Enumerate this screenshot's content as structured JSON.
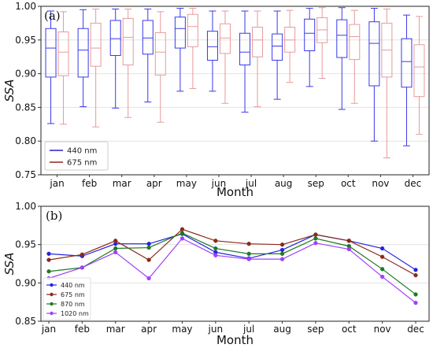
{
  "chart_data": [
    {
      "type": "box",
      "panel_tag": "(a)",
      "xlabel": "Month",
      "ylabel": "SSA",
      "ylim": [
        0.75,
        1.0
      ],
      "yticks": [
        "0.75",
        "0.80",
        "0.85",
        "0.90",
        "0.95",
        "1.00"
      ],
      "categories": [
        "jan",
        "feb",
        "mar",
        "apr",
        "may",
        "jun",
        "jul",
        "aug",
        "sep",
        "oct",
        "nov",
        "dec"
      ],
      "grid": "horizontal",
      "legend_position": "bottom-left",
      "series": [
        {
          "name": "440 nm",
          "color": "#3a3ae8",
          "boxes": [
            {
              "whislo": 0.826,
              "q1": 0.895,
              "med": 0.938,
              "q3": 0.967,
              "whishi": 0.993
            },
            {
              "whislo": 0.851,
              "q1": 0.895,
              "med": 0.935,
              "q3": 0.967,
              "whishi": 0.995
            },
            {
              "whislo": 0.849,
              "q1": 0.927,
              "med": 0.952,
              "q3": 0.979,
              "whishi": 0.996
            },
            {
              "whislo": 0.858,
              "q1": 0.929,
              "med": 0.953,
              "q3": 0.979,
              "whishi": 0.996
            },
            {
              "whislo": 0.874,
              "q1": 0.938,
              "med": 0.967,
              "q3": 0.984,
              "whishi": 0.997
            },
            {
              "whislo": 0.874,
              "q1": 0.92,
              "med": 0.94,
              "q3": 0.963,
              "whishi": 0.993
            },
            {
              "whislo": 0.843,
              "q1": 0.913,
              "med": 0.932,
              "q3": 0.96,
              "whishi": 0.993
            },
            {
              "whislo": 0.862,
              "q1": 0.92,
              "med": 0.941,
              "q3": 0.959,
              "whishi": 0.993
            },
            {
              "whislo": 0.881,
              "q1": 0.934,
              "med": 0.96,
              "q3": 0.981,
              "whishi": 0.997
            },
            {
              "whislo": 0.847,
              "q1": 0.924,
              "med": 0.957,
              "q3": 0.98,
              "whishi": 0.998
            },
            {
              "whislo": 0.8,
              "q1": 0.882,
              "med": 0.945,
              "q3": 0.977,
              "whishi": 0.997
            },
            {
              "whislo": 0.793,
              "q1": 0.88,
              "med": 0.918,
              "q3": 0.952,
              "whishi": 0.987
            }
          ]
        },
        {
          "name": "675 nm",
          "color": "#e89a9a",
          "boxes": [
            {
              "whislo": 0.825,
              "q1": 0.897,
              "med": 0.932,
              "q3": 0.962,
              "whishi": 0.992
            },
            {
              "whislo": 0.821,
              "q1": 0.911,
              "med": 0.938,
              "q3": 0.975,
              "whishi": 0.996
            },
            {
              "whislo": 0.835,
              "q1": 0.913,
              "med": 0.954,
              "q3": 0.982,
              "whishi": 0.996
            },
            {
              "whislo": 0.828,
              "q1": 0.898,
              "med": 0.932,
              "q3": 0.961,
              "whishi": 0.992
            },
            {
              "whislo": 0.878,
              "q1": 0.94,
              "med": 0.97,
              "q3": 0.988,
              "whishi": 0.997
            },
            {
              "whislo": 0.856,
              "q1": 0.93,
              "med": 0.953,
              "q3": 0.974,
              "whishi": 0.993
            },
            {
              "whislo": 0.851,
              "q1": 0.925,
              "med": 0.95,
              "q3": 0.969,
              "whishi": 0.993
            },
            {
              "whislo": 0.887,
              "q1": 0.932,
              "med": 0.95,
              "q3": 0.969,
              "whishi": 0.994
            },
            {
              "whislo": 0.893,
              "q1": 0.946,
              "med": 0.965,
              "q3": 0.983,
              "whishi": 0.998
            },
            {
              "whislo": 0.856,
              "q1": 0.921,
              "med": 0.955,
              "q3": 0.973,
              "whishi": 0.994
            },
            {
              "whislo": 0.775,
              "q1": 0.895,
              "med": 0.935,
              "q3": 0.975,
              "whishi": 0.996
            },
            {
              "whislo": 0.81,
              "q1": 0.866,
              "med": 0.91,
              "q3": 0.943,
              "whishi": 0.985
            }
          ]
        }
      ]
    },
    {
      "type": "line",
      "panel_tag": "(b)",
      "xlabel": "Month",
      "ylabel": "SSA",
      "ylim": [
        0.85,
        1.0
      ],
      "yticks": [
        "0.85",
        "0.90",
        "0.95",
        "1.00"
      ],
      "categories": [
        "jan",
        "feb",
        "mar",
        "apr",
        "may",
        "jun",
        "jul",
        "aug",
        "sep",
        "oct",
        "nov",
        "dec"
      ],
      "grid": "horizontal",
      "legend_position": "bottom-left",
      "series": [
        {
          "name": "440 nm",
          "color": "#2424e0",
          "values": [
            0.938,
            0.935,
            0.951,
            0.951,
            0.964,
            0.94,
            0.932,
            0.943,
            0.963,
            0.955,
            0.945,
            0.917
          ]
        },
        {
          "name": "675 nm",
          "color": "#8a2a1a",
          "values": [
            0.93,
            0.937,
            0.955,
            0.93,
            0.97,
            0.955,
            0.951,
            0.95,
            0.963,
            0.955,
            0.934,
            0.91
          ]
        },
        {
          "name": "870 nm",
          "color": "#1f7a1f",
          "values": [
            0.915,
            0.92,
            0.945,
            0.946,
            0.965,
            0.945,
            0.938,
            0.938,
            0.958,
            0.948,
            0.918,
            0.885
          ]
        },
        {
          "name": "1020 nm",
          "color": "#a040ff",
          "values": [
            0.906,
            0.92,
            0.94,
            0.906,
            0.958,
            0.936,
            0.931,
            0.931,
            0.952,
            0.944,
            0.908,
            0.874
          ]
        }
      ]
    }
  ]
}
